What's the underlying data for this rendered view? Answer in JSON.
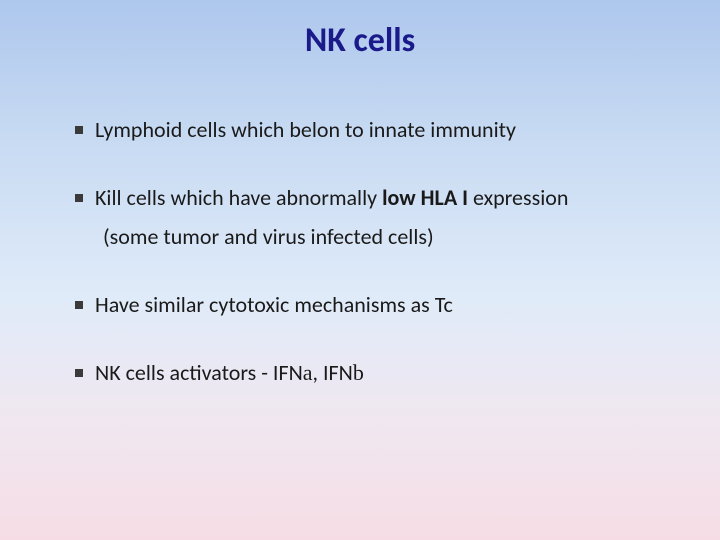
{
  "slide": {
    "title": "NK cells",
    "title_color": "#1a1a8a",
    "title_fontsize": 34,
    "body_fontsize": 22,
    "body_color": "#1a1a1a",
    "bullet_color": "#3a3a3a",
    "background_gradient": [
      "#aec7ed",
      "#c7daf2",
      "#e0ebf9",
      "#f0e7f0",
      "#f6dde5"
    ],
    "bullets": {
      "b1": "Lymphoid cells which belon to innate immunity",
      "b2_pre": "Kill cells which have abnormally ",
      "b2_bold": "low HLA I",
      "b2_post": " expression",
      "b2_cont": "(some tumor and virus infected cells)",
      "b3": "Have similar cytotoxic mechanisms as Tc",
      "b4_pre": "NK cells activators - ",
      "b4_ifn_a": "IFN",
      "b4_alpha": "a",
      "b4_sep": ", ",
      "b4_ifn_b": "IFN",
      "b4_beta": "b"
    }
  }
}
